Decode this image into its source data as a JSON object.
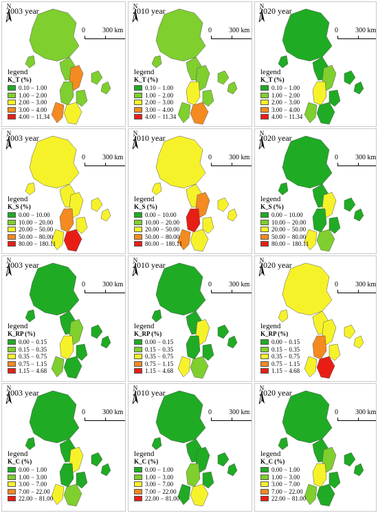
{
  "compass": {
    "letter": "N"
  },
  "scale": {
    "start": "0",
    "end": "300 km"
  },
  "legend_word": "legend",
  "colors": [
    "#1fab24",
    "#7fcf2e",
    "#f6f22a",
    "#f48a20",
    "#e81e14"
  ],
  "rows": [
    {
      "variable": "K_T (%)",
      "classes": [
        "0.10 − 1.00",
        "1.00 − 2.00",
        "2.00 − 3.00",
        "3.00 − 4.00",
        "4.00 − 11.34"
      ],
      "panels": [
        {
          "year": "2003 year",
          "dominant": 1
        },
        {
          "year": "2010 year",
          "dominant": 1
        },
        {
          "year": "2020 year",
          "dominant": 0
        }
      ]
    },
    {
      "variable": "K_S (%)",
      "classes": [
        "0.00 − 10.00",
        "10.00 − 20.00",
        "20.00 − 50.00",
        "50.00 − 80.00",
        "80.00 − 180.11"
      ],
      "panels": [
        {
          "year": "2003 year",
          "dominant": 2
        },
        {
          "year": "2010 year",
          "dominant": 2
        },
        {
          "year": "2020 year",
          "dominant": 0
        }
      ]
    },
    {
      "variable": "K_RP (%)",
      "classes": [
        "0.00 − 0.15",
        "0.15 − 0.35",
        "0.35 − 0.75",
        "0.75 − 1.15",
        "1.15 − 4.68"
      ],
      "panels": [
        {
          "year": "2003 year",
          "dominant": 0
        },
        {
          "year": "2010 year",
          "dominant": 0
        },
        {
          "year": "2020 year",
          "dominant": 2
        }
      ]
    },
    {
      "variable": "K_C (%)",
      "classes": [
        "0.00 − 1.00",
        "1.00 − 3.00",
        "3.00 − 7.00",
        "7.00 − 22.00",
        "22.00 − 81.00"
      ],
      "panels": [
        {
          "year": "2003 year",
          "dominant": 0
        },
        {
          "year": "2010 year",
          "dominant": 0
        },
        {
          "year": "2020 year",
          "dominant": 0
        }
      ]
    }
  ]
}
